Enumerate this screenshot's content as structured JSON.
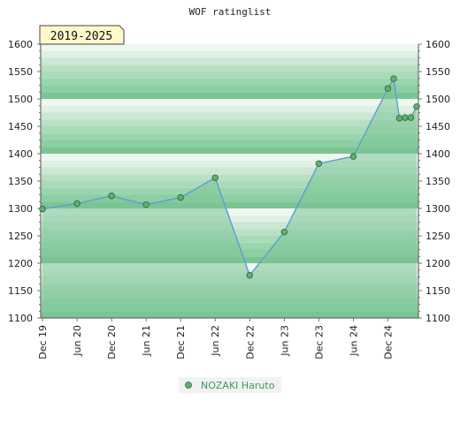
{
  "chart_data": {
    "type": "area",
    "title": "WOF ratinglist",
    "badge": "2019-2025",
    "xlabel": "",
    "ylabel": "",
    "ylim": [
      1100,
      1600
    ],
    "y_ticks": [
      1100,
      1150,
      1200,
      1250,
      1300,
      1350,
      1400,
      1450,
      1500,
      1550,
      1600
    ],
    "x_ticks": [
      "Dec 19",
      "Jun 20",
      "Dec 20",
      "Jun 21",
      "Dec 21",
      "Jun 22",
      "Dec 22",
      "Jun 23",
      "Dec 23",
      "Jun 24",
      "Dec 24"
    ],
    "grid": true,
    "legend_position": "bottom-center",
    "colors": {
      "line": "#5a9fd4",
      "area": "#7cc596",
      "marker": "#5fb06f",
      "marker_edge": "#2f5f3a",
      "band_dark": "#7dc495",
      "band_mid": "#b9dfc4",
      "band_light": "#eef7f0",
      "badge_bg": "#fff8c8",
      "badge_border": "#444444"
    },
    "series": [
      {
        "name": "NOZAKI Haruto",
        "points": [
          {
            "x": "Dec 19",
            "y": 1299
          },
          {
            "x": "Jun 20",
            "y": 1309
          },
          {
            "x": "Dec 20",
            "y": 1323
          },
          {
            "x": "Jun 21",
            "y": 1307
          },
          {
            "x": "Dec 21",
            "y": 1320
          },
          {
            "x": "Jun 22",
            "y": 1356
          },
          {
            "x": "Dec 22",
            "y": 1178
          },
          {
            "x": "Jun 23",
            "y": 1257
          },
          {
            "x": "Dec 23",
            "y": 1382
          },
          {
            "x": "Jun 24",
            "y": 1395
          },
          {
            "x": "Dec 24",
            "y": 1519
          },
          {
            "x": "Jan 25",
            "y": 1537
          },
          {
            "x": "Feb 25",
            "y": 1465
          },
          {
            "x": "Mar 25",
            "y": 1466
          },
          {
            "x": "Apr 25",
            "y": 1466
          },
          {
            "x": "May 25",
            "y": 1486
          }
        ]
      }
    ]
  }
}
